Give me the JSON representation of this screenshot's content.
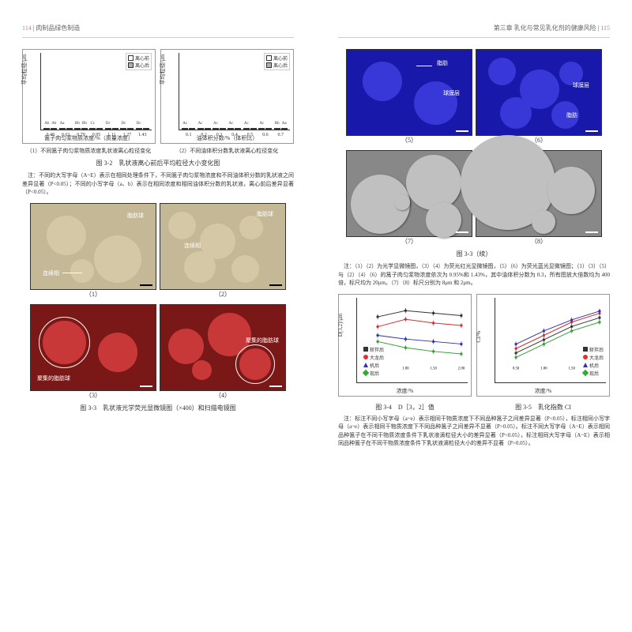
{
  "left": {
    "pn": "114",
    "title": "肉制品绿色制造"
  },
  "right": {
    "pn": "115",
    "title": "第三章 乳化与常见乳化剂的健康风险"
  },
  "c1": {
    "ylabel": "平均粒径/μm",
    "xlabel": "篙子肉匀浆物质浓度/%（质量浓度）",
    "sub": "（1）不同篙子肉匀浆物质浓度乳状液离心粒径变化",
    "cats": [
      "0.48",
      "0.63",
      "0.79",
      "0.95",
      "1.11",
      "1.27",
      "1.43"
    ],
    "a": [
      72,
      118,
      68,
      60,
      58,
      55,
      52
    ],
    "b": [
      78,
      125,
      78,
      62,
      60,
      58,
      55
    ],
    "la": [
      "Ab",
      "Aa",
      "Bb",
      "Cc",
      "Dc",
      "Dc",
      "Dc"
    ],
    "lb": [
      "Ab",
      "",
      "Bb",
      "",
      "",
      "",
      ""
    ],
    "ymax": 160
  },
  "c2": {
    "ylabel": "平均粒径/μm",
    "xlabel": "油体积分数/%（体积比）",
    "sub": "（2）不同油体积分数乳状液离心粒径变化",
    "cats": [
      "0.1",
      "0.2",
      "0.3",
      "0.4",
      "0.5",
      "0.6",
      "0.7"
    ],
    "a": [
      42,
      38,
      40,
      45,
      40,
      42,
      78
    ],
    "b": [
      48,
      42,
      45,
      48,
      42,
      45,
      118
    ],
    "la": [
      "Ac",
      "Ac",
      "Ac",
      "Ac",
      "Ac",
      "Ac",
      "Bb"
    ],
    "lb": [
      "",
      "",
      "",
      "",
      "",
      "",
      "Aa"
    ],
    "ymax": 160
  },
  "leg": {
    "a": "离心前",
    "b": "离心后"
  },
  "cap32": "图 3-2　乳状液离心前后平均粒径大小变化图",
  "note32": "注：不同的大写字母（A~E）表示在相同处理条件下，不同篙子肉匀浆物浓度和不同油体积分数的乳状液之间差异显著（P<0.05）；不同的小写字母（a、b）表示在相同浓度和相同油体积分数的乳状液，离心前后差异显著（P<0.05）。",
  "mi": {
    "n1": "（1）",
    "n2": "（2）",
    "n3": "（3）",
    "n4": "（4）",
    "n5": "（5）",
    "n6": "（6）",
    "n7": "（7）",
    "n8": "（8）",
    "l_conn": "连续相",
    "l_fat": "脂肪球",
    "l_dense": "聚集的脂肪球",
    "l_memb": "球膜层",
    "l_fat2": "脂肪"
  },
  "cap33": "图 3-3　乳状液光学荧光显微镜图（×400）和扫描电镜图",
  "cap33c": "图 3-3（续）",
  "note33": "注：（1）（2）为光学显微镜图，（3）（4）为荧光红光显微镜图，（5）（6）为荧光蓝光显微镜图；（1）（3）（5）与（2）（4）（6）的篙子肉匀浆物浓度依次为 0.95%和 1.43%，其中油体积分数为 0.3，所有图放大倍数均为 400倍，标尺均为 20μm。（7）（8）标尺分别为 8μm 和 2μm。",
  "lc1": {
    "x": [
      0.5,
      1.0,
      1.5,
      2.0
    ],
    "s1": [
      5.0,
      5.5,
      5.3,
      5.1
    ],
    "s2": [
      4.2,
      4.8,
      4.5,
      4.3
    ],
    "s3": [
      3.5,
      3.2,
      3.0,
      2.8
    ],
    "s4": [
      3.0,
      2.5,
      2.2,
      2.0
    ],
    "ymax": 6,
    "ymin": 1,
    "ylabel": "D[3,2]/μm",
    "xlabel": "浓度/%",
    "labels": [
      "Aa",
      "Bb",
      "Cb",
      "Db",
      "Eb"
    ]
  },
  "lc2": {
    "x": [
      0.5,
      1.0,
      1.5,
      2.0
    ],
    "s1": [
      36,
      42,
      48,
      52
    ],
    "s2": [
      38,
      44,
      50,
      54
    ],
    "s3": [
      40,
      46,
      51,
      55
    ],
    "s4": [
      34,
      40,
      46,
      50
    ],
    "ymax": 58,
    "ymin": 30,
    "ylabel": "CI/%",
    "xlabel": "浓度/%"
  },
  "lcleg": {
    "s1": "斩拌后",
    "s2": "大龙后",
    "s3": "机后",
    "s4": "现后"
  },
  "cap34": "图 3-4　D［3，2］值",
  "cap35": "图 3-5　乳化指数 CI",
  "note34": "注：标注不同小写字母（a~e）表示相同干物质浓度下不同品种篙子之间差异显著（P<0.05），标注相同小写字母（a~e）表示相同干物质浓度下不同品种篙子之间差异不显著（P>0.05）。标注不同大写字母（A~E）表示相同品种篙子在不同干物质浓度条件下乳状液滴粒径大小的差异显著（P<0.05），标注相同大写字母（A~E）表示相同品种篙子在不同干物质浓度条件下乳状液滴粒径大小的差异不显著（P>0.05）。",
  "col": {
    "s1": "#333333",
    "s2": "#d03030",
    "s3": "#3030b0",
    "s4": "#30a030"
  }
}
